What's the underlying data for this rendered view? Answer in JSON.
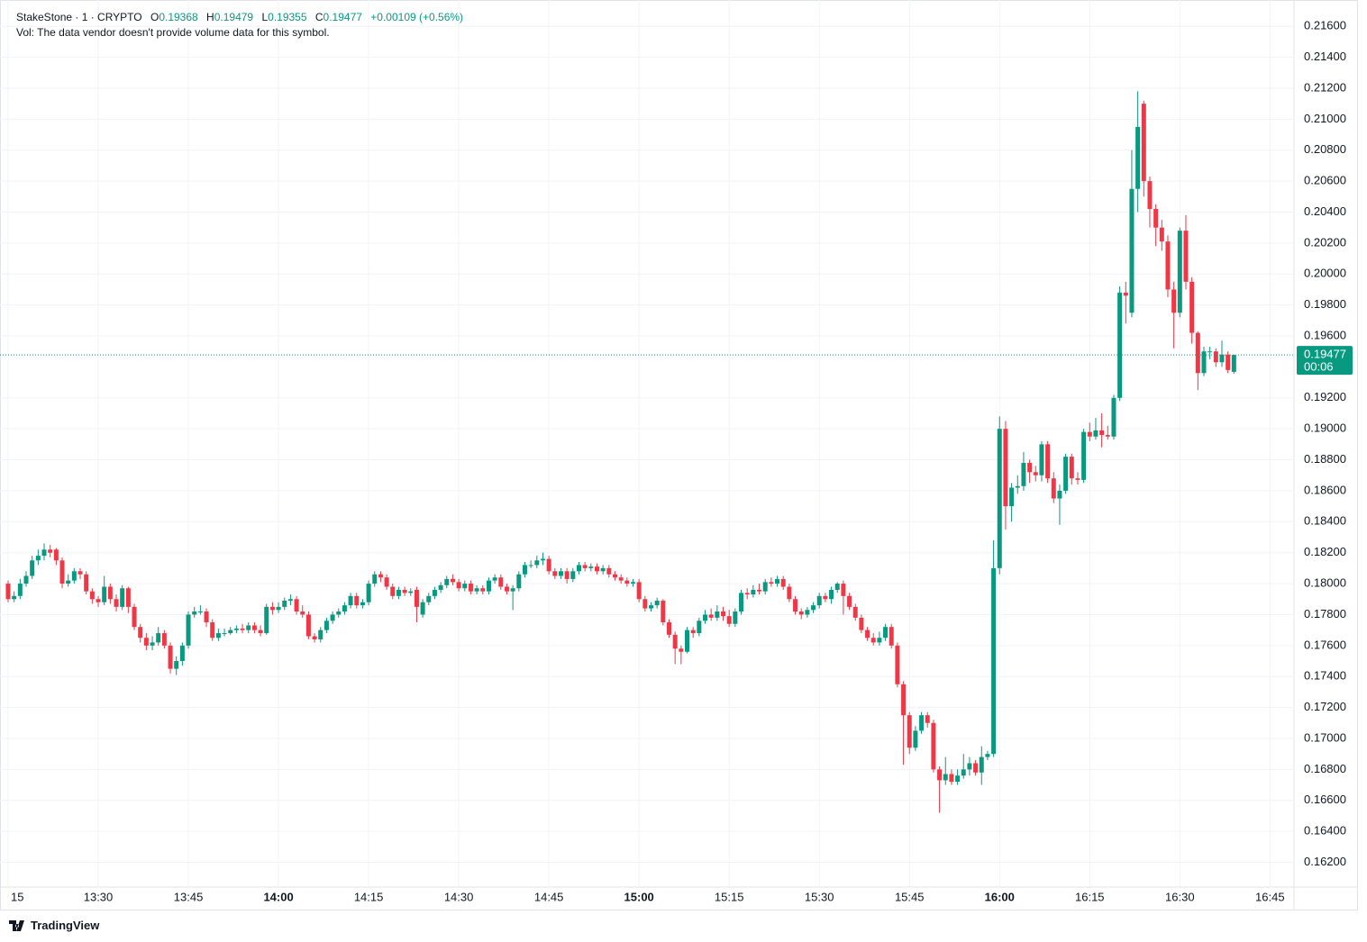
{
  "chart_data": {
    "type": "candlestick",
    "header": {
      "symbol": "StakeStone · 1 · CRYPTO",
      "open_label": "O",
      "open": 0.19368,
      "high_label": "H",
      "high": 0.19479,
      "low_label": "L",
      "low": 0.19355,
      "close_label": "C",
      "close": 0.19477,
      "change": {
        "value": 0.00109,
        "label": "+0.00109"
      },
      "change_pct": {
        "value": 0.56,
        "label": "(+0.56%)"
      },
      "volume_note": "Vol: The data vendor doesn't provide volume data for this symbol.",
      "countdown": "00:06"
    },
    "up_color": "#089981",
    "down_color": "#f23645",
    "grid": true,
    "xlim": [
      "13:15",
      "16:49"
    ],
    "xticks": [
      {
        "value": "13:15",
        "label": "15"
      },
      "13:30",
      "13:45",
      "14:00",
      "14:15",
      "14:30",
      "14:45",
      "15:00",
      "15:15",
      "15:30",
      "15:45",
      "16:00",
      "16:15",
      "16:30",
      "16:45"
    ],
    "ylim": [
      0.1604,
      0.2177
    ],
    "yticks": [
      {
        "value": 0.162,
        "label": "0.16200"
      },
      {
        "value": 0.164,
        "label": "0.16400"
      },
      {
        "value": 0.166,
        "label": "0.16600"
      },
      {
        "value": 0.168,
        "label": "0.16800"
      },
      {
        "value": 0.17,
        "label": "0.17000"
      },
      {
        "value": 0.172,
        "label": "0.17200"
      },
      {
        "value": 0.174,
        "label": "0.17400"
      },
      {
        "value": 0.176,
        "label": "0.17600"
      },
      {
        "value": 0.178,
        "label": "0.17800"
      },
      {
        "value": 0.18,
        "label": "0.18000"
      },
      {
        "value": 0.182,
        "label": "0.18200"
      },
      {
        "value": 0.184,
        "label": "0.18400"
      },
      {
        "value": 0.186,
        "label": "0.18600"
      },
      {
        "value": 0.188,
        "label": "0.18800"
      },
      {
        "value": 0.19,
        "label": "0.19000"
      },
      {
        "value": 0.192,
        "label": "0.19200"
      },
      {
        "value": 0.196,
        "label": "0.19600"
      },
      {
        "value": 0.198,
        "label": "0.19800"
      },
      {
        "value": 0.2,
        "label": "0.20000"
      },
      {
        "value": 0.202,
        "label": "0.20200"
      },
      {
        "value": 0.204,
        "label": "0.20400"
      },
      {
        "value": 0.206,
        "label": "0.20600"
      },
      {
        "value": 0.208,
        "label": "0.20800"
      },
      {
        "value": 0.21,
        "label": "0.21000"
      },
      {
        "value": 0.212,
        "label": "0.21200"
      },
      {
        "value": 0.214,
        "label": "0.21400"
      },
      {
        "value": 0.216,
        "label": "0.21600"
      }
    ],
    "x": [
      "13:15",
      "13:16",
      "13:17",
      "13:18",
      "13:19",
      "13:20",
      "13:21",
      "13:22",
      "13:23",
      "13:24",
      "13:25",
      "13:26",
      "13:27",
      "13:28",
      "13:29",
      "13:30",
      "13:31",
      "13:32",
      "13:33",
      "13:34",
      "13:35",
      "13:36",
      "13:37",
      "13:38",
      "13:39",
      "13:40",
      "13:41",
      "13:42",
      "13:43",
      "13:44",
      "13:45",
      "13:46",
      "13:47",
      "13:48",
      "13:49",
      "13:50",
      "13:51",
      "13:52",
      "13:53",
      "13:54",
      "13:55",
      "13:56",
      "13:57",
      "13:58",
      "13:59",
      "14:00",
      "14:01",
      "14:02",
      "14:03",
      "14:04",
      "14:05",
      "14:06",
      "14:07",
      "14:08",
      "14:09",
      "14:10",
      "14:11",
      "14:12",
      "14:13",
      "14:14",
      "14:15",
      "14:16",
      "14:17",
      "14:18",
      "14:19",
      "14:20",
      "14:21",
      "14:22",
      "14:23",
      "14:24",
      "14:25",
      "14:26",
      "14:27",
      "14:28",
      "14:29",
      "14:30",
      "14:31",
      "14:32",
      "14:33",
      "14:34",
      "14:35",
      "14:36",
      "14:37",
      "14:38",
      "14:39",
      "14:40",
      "14:41",
      "14:42",
      "14:43",
      "14:44",
      "14:45",
      "14:46",
      "14:47",
      "14:48",
      "14:49",
      "14:50",
      "14:51",
      "14:52",
      "14:53",
      "14:54",
      "14:55",
      "14:56",
      "14:57",
      "14:58",
      "14:59",
      "15:00",
      "15:01",
      "15:02",
      "15:03",
      "15:04",
      "15:05",
      "15:06",
      "15:07",
      "15:08",
      "15:09",
      "15:10",
      "15:11",
      "15:12",
      "15:13",
      "15:14",
      "15:15",
      "15:16",
      "15:17",
      "15:18",
      "15:19",
      "15:20",
      "15:21",
      "15:22",
      "15:23",
      "15:24",
      "15:25",
      "15:26",
      "15:27",
      "15:28",
      "15:29",
      "15:30",
      "15:31",
      "15:32",
      "15:33",
      "15:34",
      "15:35",
      "15:36",
      "15:37",
      "15:38",
      "15:39",
      "15:40",
      "15:41",
      "15:42",
      "15:43",
      "15:44",
      "15:45",
      "15:46",
      "15:47",
      "15:48",
      "15:49",
      "15:50",
      "15:51",
      "15:52",
      "15:53",
      "15:54",
      "15:55",
      "15:56",
      "15:57",
      "15:58",
      "15:59",
      "16:00",
      "16:01",
      "16:02",
      "16:03",
      "16:04",
      "16:05",
      "16:06",
      "16:07",
      "16:08",
      "16:09",
      "16:10",
      "16:11",
      "16:12",
      "16:13",
      "16:14",
      "16:15",
      "16:16",
      "16:17",
      "16:18",
      "16:19",
      "16:20",
      "16:21",
      "16:22",
      "16:23",
      "16:24",
      "16:25",
      "16:26",
      "16:27",
      "16:28",
      "16:29",
      "16:30",
      "16:31",
      "16:32",
      "16:33",
      "16:34",
      "16:35",
      "16:36",
      "16:37",
      "16:38",
      "16:39"
    ],
    "open": [
      0.18,
      0.179,
      0.1792,
      0.18,
      0.1805,
      0.1815,
      0.1818,
      0.1822,
      0.1822,
      0.1815,
      0.18,
      0.1802,
      0.1808,
      0.1806,
      0.1795,
      0.179,
      0.1788,
      0.1798,
      0.179,
      0.1785,
      0.1797,
      0.1785,
      0.1772,
      0.1765,
      0.176,
      0.1762,
      0.1768,
      0.176,
      0.1745,
      0.175,
      0.176,
      0.178,
      0.1782,
      0.1782,
      0.1775,
      0.1765,
      0.1768,
      0.1768,
      0.177,
      0.1771,
      0.177,
      0.1773,
      0.177,
      0.1768,
      0.1785,
      0.1783,
      0.1785,
      0.1789,
      0.179,
      0.1782,
      0.178,
      0.1766,
      0.1764,
      0.177,
      0.1776,
      0.178,
      0.1782,
      0.1786,
      0.1792,
      0.1786,
      0.1788,
      0.18,
      0.1806,
      0.1804,
      0.1798,
      0.1792,
      0.1796,
      0.1794,
      0.1796,
      0.178,
      0.1788,
      0.1792,
      0.1796,
      0.1799,
      0.1803,
      0.1801,
      0.1797,
      0.18,
      0.1795,
      0.1797,
      0.1795,
      0.1802,
      0.1804,
      0.1798,
      0.1795,
      0.1797,
      0.1806,
      0.1812,
      0.1812,
      0.1815,
      0.1816,
      0.1808,
      0.1805,
      0.1808,
      0.1803,
      0.1808,
      0.1812,
      0.181,
      0.1811,
      0.1808,
      0.181,
      0.1806,
      0.1804,
      0.1802,
      0.18,
      0.1801,
      0.179,
      0.1784,
      0.1786,
      0.1789,
      0.1775,
      0.1767,
      0.1758,
      0.1756,
      0.177,
      0.1768,
      0.1776,
      0.178,
      0.1778,
      0.1782,
      0.1779,
      0.1774,
      0.1782,
      0.1794,
      0.1793,
      0.1796,
      0.1795,
      0.1801,
      0.18,
      0.1803,
      0.1798,
      0.179,
      0.1782,
      0.178,
      0.1783,
      0.1786,
      0.1792,
      0.179,
      0.1796,
      0.18,
      0.1792,
      0.1785,
      0.1778,
      0.177,
      0.1765,
      0.1762,
      0.1765,
      0.1772,
      0.176,
      0.1735,
      0.1715,
      0.1694,
      0.1705,
      0.1715,
      0.171,
      0.168,
      0.1673,
      0.1677,
      0.1672,
      0.1676,
      0.168,
      0.1684,
      0.1678,
      0.1688,
      0.169,
      0.181,
      0.19,
      0.185,
      0.1862,
      0.1863,
      0.1878,
      0.1872,
      0.187,
      0.189,
      0.1868,
      0.1855,
      0.186,
      0.1882,
      0.1868,
      0.1867,
      0.1898,
      0.1895,
      0.1899,
      0.1896,
      0.1895,
      0.192,
      0.1988,
      0.1975,
      0.2055,
      0.211,
      0.206,
      0.2042,
      0.203,
      0.2021,
      0.199,
      0.1975,
      0.2028,
      0.1995,
      0.1962,
      0.1936,
      0.195,
      0.195,
      0.1943,
      0.1948,
      0.19368
    ],
    "high": [
      0.1802,
      0.1795,
      0.1803,
      0.1808,
      0.1818,
      0.1822,
      0.1826,
      0.1825,
      0.1823,
      0.1817,
      0.1806,
      0.181,
      0.181,
      0.1808,
      0.1797,
      0.1792,
      0.1805,
      0.18,
      0.1793,
      0.1799,
      0.1798,
      0.1787,
      0.1774,
      0.1768,
      0.1766,
      0.1772,
      0.177,
      0.1762,
      0.1753,
      0.1762,
      0.1782,
      0.1785,
      0.1786,
      0.1784,
      0.1777,
      0.1771,
      0.1771,
      0.1772,
      0.1773,
      0.1774,
      0.1775,
      0.1775,
      0.1773,
      0.1787,
      0.1788,
      0.1788,
      0.1791,
      0.1793,
      0.1792,
      0.1786,
      0.1782,
      0.1768,
      0.1772,
      0.1778,
      0.1782,
      0.1784,
      0.1788,
      0.1794,
      0.1794,
      0.179,
      0.1802,
      0.1808,
      0.1808,
      0.1806,
      0.18,
      0.1798,
      0.1798,
      0.1797,
      0.1798,
      0.179,
      0.1794,
      0.1798,
      0.1801,
      0.1805,
      0.1806,
      0.1803,
      0.1802,
      0.1802,
      0.1799,
      0.1799,
      0.1804,
      0.1806,
      0.1806,
      0.18,
      0.1799,
      0.1808,
      0.1814,
      0.1815,
      0.1818,
      0.182,
      0.1818,
      0.181,
      0.181,
      0.181,
      0.181,
      0.1814,
      0.1814,
      0.1813,
      0.1813,
      0.1812,
      0.1812,
      0.1808,
      0.1806,
      0.1804,
      0.1803,
      0.1803,
      0.1792,
      0.1788,
      0.1791,
      0.179,
      0.1777,
      0.1769,
      0.176,
      0.1772,
      0.1772,
      0.1778,
      0.1783,
      0.1784,
      0.1786,
      0.1785,
      0.1783,
      0.1784,
      0.1796,
      0.1797,
      0.1799,
      0.18,
      0.1803,
      0.1804,
      0.1805,
      0.1805,
      0.18,
      0.1792,
      0.1784,
      0.1785,
      0.1788,
      0.1794,
      0.1794,
      0.1798,
      0.1801,
      0.1802,
      0.1794,
      0.1787,
      0.178,
      0.1772,
      0.1768,
      0.1769,
      0.1774,
      0.1774,
      0.1762,
      0.1737,
      0.1717,
      0.1708,
      0.1717,
      0.1717,
      0.1712,
      0.1682,
      0.1688,
      0.168,
      0.168,
      0.169,
      0.1688,
      0.1686,
      0.1695,
      0.1692,
      0.1828,
      0.1908,
      0.1905,
      0.1865,
      0.187,
      0.1885,
      0.188,
      0.1876,
      0.1892,
      0.1892,
      0.1872,
      0.1864,
      0.1884,
      0.1884,
      0.1872,
      0.19,
      0.1904,
      0.1907,
      0.191,
      0.1902,
      0.1922,
      0.1992,
      0.1995,
      0.208,
      0.2118,
      0.2112,
      0.2063,
      0.2045,
      0.2035,
      0.2025,
      0.1995,
      0.203,
      0.2038,
      0.1998,
      0.1963,
      0.1953,
      0.1953,
      0.1952,
      0.1957,
      0.195,
      0.19479
    ],
    "low": [
      0.1788,
      0.1788,
      0.179,
      0.1798,
      0.1803,
      0.1812,
      0.1815,
      0.1817,
      0.1812,
      0.1797,
      0.1798,
      0.18,
      0.1803,
      0.1793,
      0.1787,
      0.1785,
      0.1786,
      0.1787,
      0.1782,
      0.1783,
      0.1781,
      0.177,
      0.1762,
      0.1757,
      0.1757,
      0.176,
      0.1758,
      0.1742,
      0.1741,
      0.1747,
      0.1758,
      0.1778,
      0.178,
      0.1772,
      0.1763,
      0.1763,
      0.1766,
      0.1767,
      0.1768,
      0.1768,
      0.1768,
      0.1768,
      0.1766,
      0.1767,
      0.178,
      0.1781,
      0.1783,
      0.1786,
      0.178,
      0.1778,
      0.1764,
      0.1762,
      0.1762,
      0.1768,
      0.1774,
      0.1778,
      0.178,
      0.1784,
      0.1784,
      0.1784,
      0.1786,
      0.1798,
      0.1801,
      0.1796,
      0.179,
      0.179,
      0.1792,
      0.1792,
      0.1775,
      0.1778,
      0.1786,
      0.179,
      0.1794,
      0.1797,
      0.1799,
      0.1795,
      0.1795,
      0.1793,
      0.1793,
      0.1793,
      0.1793,
      0.18,
      0.1796,
      0.1793,
      0.1783,
      0.1795,
      0.1804,
      0.181,
      0.181,
      0.1812,
      0.1806,
      0.1803,
      0.1803,
      0.18,
      0.1801,
      0.1806,
      0.1808,
      0.1808,
      0.1806,
      0.1806,
      0.1804,
      0.1802,
      0.18,
      0.1798,
      0.1798,
      0.1788,
      0.1782,
      0.1782,
      0.1784,
      0.1773,
      0.1765,
      0.1748,
      0.1748,
      0.1755,
      0.1765,
      0.1766,
      0.1774,
      0.1776,
      0.1776,
      0.1776,
      0.1772,
      0.1772,
      0.178,
      0.179,
      0.1791,
      0.1793,
      0.1793,
      0.1798,
      0.1798,
      0.1796,
      0.1788,
      0.178,
      0.1777,
      0.1778,
      0.1781,
      0.1784,
      0.1788,
      0.1787,
      0.1794,
      0.178,
      0.1783,
      0.1776,
      0.1768,
      0.1763,
      0.176,
      0.176,
      0.1763,
      0.1758,
      0.1733,
      0.1683,
      0.169,
      0.1692,
      0.1703,
      0.1707,
      0.1678,
      0.1652,
      0.167,
      0.167,
      0.167,
      0.1674,
      0.1676,
      0.1676,
      0.167,
      0.1686,
      0.1688,
      0.1806,
      0.1835,
      0.184,
      0.1858,
      0.186,
      0.1865,
      0.1866,
      0.1866,
      0.1865,
      0.1852,
      0.1838,
      0.1858,
      0.1864,
      0.1864,
      0.1865,
      0.1892,
      0.1893,
      0.1888,
      0.1893,
      0.1893,
      0.1918,
      0.1968,
      0.1972,
      0.204,
      0.205,
      0.203,
      0.2018,
      0.2015,
      0.1985,
      0.1952,
      0.1972,
      0.199,
      0.1955,
      0.1925,
      0.1934,
      0.1945,
      0.194,
      0.194,
      0.1936,
      0.19355
    ],
    "close": [
      0.179,
      0.1792,
      0.18,
      0.1805,
      0.1815,
      0.1818,
      0.1822,
      0.182,
      0.1815,
      0.18,
      0.1802,
      0.1808,
      0.1806,
      0.1795,
      0.179,
      0.1788,
      0.1798,
      0.179,
      0.1785,
      0.1797,
      0.1785,
      0.1772,
      0.1765,
      0.176,
      0.1762,
      0.1768,
      0.176,
      0.1745,
      0.175,
      0.176,
      0.178,
      0.1782,
      0.1782,
      0.1775,
      0.1765,
      0.1768,
      0.1768,
      0.177,
      0.1771,
      0.177,
      0.1773,
      0.177,
      0.1768,
      0.1785,
      0.1783,
      0.1785,
      0.1789,
      0.179,
      0.1782,
      0.178,
      0.1766,
      0.1764,
      0.177,
      0.1776,
      0.178,
      0.1782,
      0.1786,
      0.1792,
      0.1786,
      0.1788,
      0.18,
      0.1806,
      0.1804,
      0.1798,
      0.1792,
      0.1796,
      0.1794,
      0.1795,
      0.1785,
      0.1788,
      0.1792,
      0.1796,
      0.1799,
      0.1803,
      0.1801,
      0.1797,
      0.18,
      0.1795,
      0.1797,
      0.1795,
      0.1802,
      0.1804,
      0.1798,
      0.1795,
      0.1797,
      0.1806,
      0.1812,
      0.1812,
      0.1815,
      0.1816,
      0.1808,
      0.1805,
      0.1808,
      0.1803,
      0.1808,
      0.1812,
      0.181,
      0.1811,
      0.1808,
      0.181,
      0.1806,
      0.1804,
      0.1802,
      0.18,
      0.1801,
      0.179,
      0.1784,
      0.1786,
      0.1789,
      0.1775,
      0.1767,
      0.1758,
      0.1756,
      0.177,
      0.1768,
      0.1776,
      0.178,
      0.1778,
      0.1782,
      0.1779,
      0.1774,
      0.1782,
      0.1794,
      0.1793,
      0.1796,
      0.1795,
      0.1801,
      0.18,
      0.1803,
      0.1798,
      0.179,
      0.1782,
      0.178,
      0.1783,
      0.1786,
      0.1792,
      0.179,
      0.1796,
      0.18,
      0.1792,
      0.1785,
      0.1778,
      0.177,
      0.1765,
      0.1762,
      0.1765,
      0.1772,
      0.176,
      0.1735,
      0.1715,
      0.1694,
      0.1705,
      0.1715,
      0.171,
      0.168,
      0.1673,
      0.1677,
      0.1672,
      0.1676,
      0.168,
      0.1684,
      0.1678,
      0.1688,
      0.169,
      0.181,
      0.19,
      0.185,
      0.1862,
      0.1863,
      0.1878,
      0.1872,
      0.187,
      0.189,
      0.1868,
      0.1855,
      0.186,
      0.1882,
      0.1868,
      0.1867,
      0.1898,
      0.1895,
      0.1899,
      0.1896,
      0.1895,
      0.192,
      0.1988,
      0.1986,
      0.2055,
      0.2095,
      0.206,
      0.2042,
      0.203,
      0.2021,
      0.199,
      0.1975,
      0.2028,
      0.1995,
      0.1962,
      0.1936,
      0.195,
      0.195,
      0.1943,
      0.1948,
      0.1938,
      0.19477
    ]
  },
  "footer": {
    "brand": "TradingView"
  }
}
